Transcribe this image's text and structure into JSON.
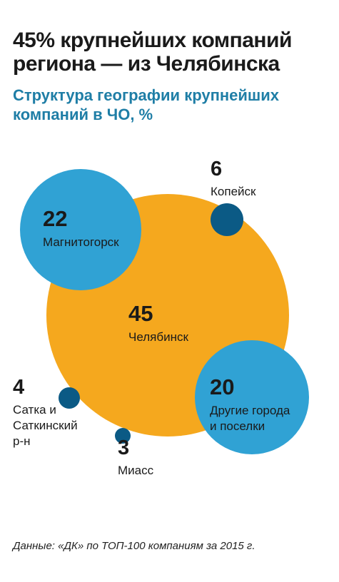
{
  "title": "45% крупнейших компаний региона — из Челябинска",
  "subtitle": "Структура географии крупнейших компаний в ЧО, %",
  "source": "Данные: «ДК» по ТОП-100 компаниям за 2015 г.",
  "colors": {
    "orange": "#f5a81e",
    "light_blue": "#30a2d4",
    "dark_blue": "#0b5a85",
    "text": "#1a1a1a",
    "subtitle": "#1f7ea6"
  },
  "chart_data": {
    "type": "bubble",
    "unit": "%",
    "series": [
      {
        "name": "Челябинск",
        "value": 45,
        "color": "#f5a81e"
      },
      {
        "name": "Магнитогорск",
        "value": 22,
        "color": "#30a2d4"
      },
      {
        "name": "Другие города и поселки",
        "value": 20,
        "color": "#30a2d4"
      },
      {
        "name": "Копейск",
        "value": 6,
        "color": "#0b5a85"
      },
      {
        "name": "Сатка и Саткинский р-н",
        "value": 4,
        "color": "#0b5a85"
      },
      {
        "name": "Миасс",
        "value": 3,
        "color": "#0b5a85"
      }
    ]
  }
}
